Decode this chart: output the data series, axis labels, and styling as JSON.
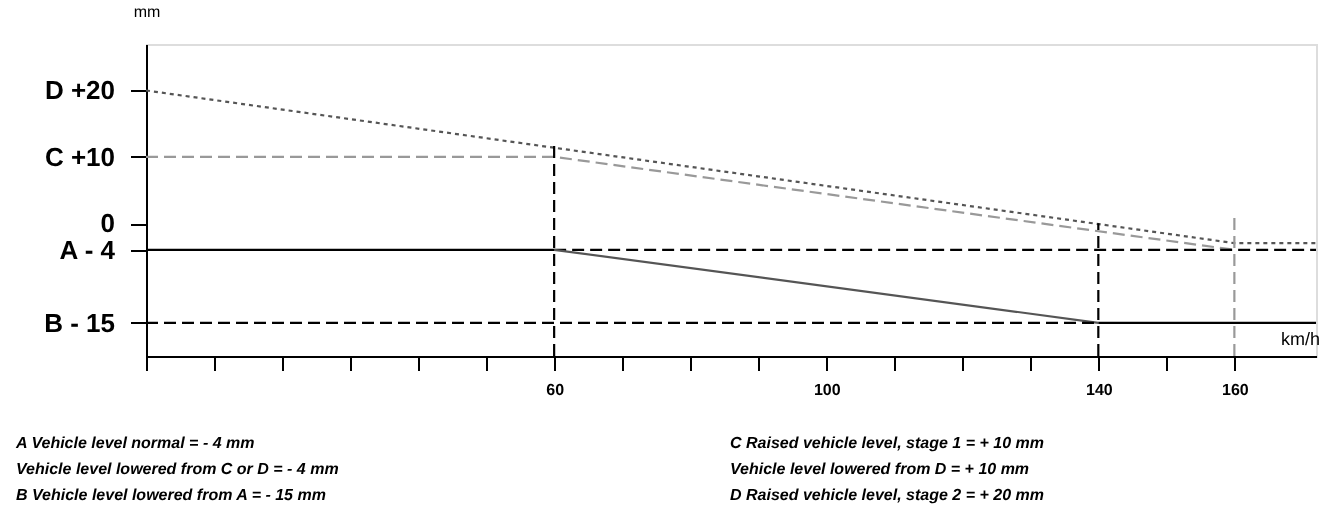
{
  "chart_data": {
    "type": "line",
    "ylabel": "mm",
    "xlabel": "km/h",
    "xlim": [
      0,
      172
    ],
    "ylim": [
      -20,
      27
    ],
    "xticks": [
      {
        "value": 0,
        "label": null
      },
      {
        "value": 10,
        "label": null
      },
      {
        "value": 20,
        "label": null
      },
      {
        "value": 30,
        "label": null
      },
      {
        "value": 40,
        "label": null
      },
      {
        "value": 50,
        "label": null
      },
      60,
      {
        "value": 70,
        "label": null
      },
      {
        "value": 80,
        "label": null
      },
      {
        "value": 90,
        "label": null
      },
      100,
      {
        "value": 110,
        "label": null
      },
      {
        "value": 120,
        "label": null
      },
      {
        "value": 130,
        "label": null
      },
      140,
      {
        "value": 150,
        "label": null
      },
      160
    ],
    "yticks": [
      {
        "value": 20,
        "label": "D  +20"
      },
      {
        "value": 10,
        "label": "C  +10"
      },
      0,
      {
        "value": -4,
        "label": "A  - 4"
      },
      {
        "value": -15,
        "label": "B  - 15"
      }
    ],
    "grid": false,
    "marker": "none",
    "series": [
      {
        "color": "#555555",
        "line_style": "dotted",
        "x": [
          0,
          160,
          172
        ],
        "values": [
          20,
          -3,
          -3
        ]
      },
      {
        "color": "#999999",
        "line_style": "dashed",
        "x": [
          0,
          60,
          160
        ],
        "values": [
          10,
          10,
          -4
        ]
      },
      {
        "color": "#000000",
        "line_style": "solid",
        "x": [
          0,
          60
        ],
        "values": [
          -4,
          -4
        ]
      },
      {
        "color": "#000000",
        "line_style": "dashed",
        "x": [
          60,
          172
        ],
        "values": [
          -4,
          -4
        ]
      },
      {
        "color": "#555555",
        "line_style": "solid",
        "x": [
          60,
          140
        ],
        "values": [
          -4,
          -15
        ]
      },
      {
        "color": "#000000",
        "line_style": "dashed",
        "x": [
          0,
          140
        ],
        "values": [
          -15,
          -15
        ]
      },
      {
        "color": "#000000",
        "line_style": "solid",
        "x": [
          140,
          172
        ],
        "values": [
          -15,
          -15
        ]
      },
      {
        "color": "#000000",
        "line_style": "dashed",
        "x": [
          60,
          60
        ],
        "values": [
          -20,
          12
        ]
      },
      {
        "color": "#000000",
        "line_style": "dashed",
        "x": [
          140,
          140
        ],
        "values": [
          -20,
          0
        ]
      },
      {
        "color": "#999999",
        "line_style": "dashed",
        "x": [
          160,
          160
        ],
        "values": [
          -20,
          1
        ]
      }
    ],
    "annotations": [
      "A     Vehicle level normal = - 4 mm",
      "        Vehicle level lowered from  C or  D = - 4 mm",
      "B     Vehicle level lowered from  A = - 15 mm",
      "C     Raised vehicle level, stage 1 = + 10 mm",
      "        Vehicle level lowered from  D = + 10 mm",
      "D     Raised vehicle level, stage 2 = + 20 mm"
    ]
  }
}
